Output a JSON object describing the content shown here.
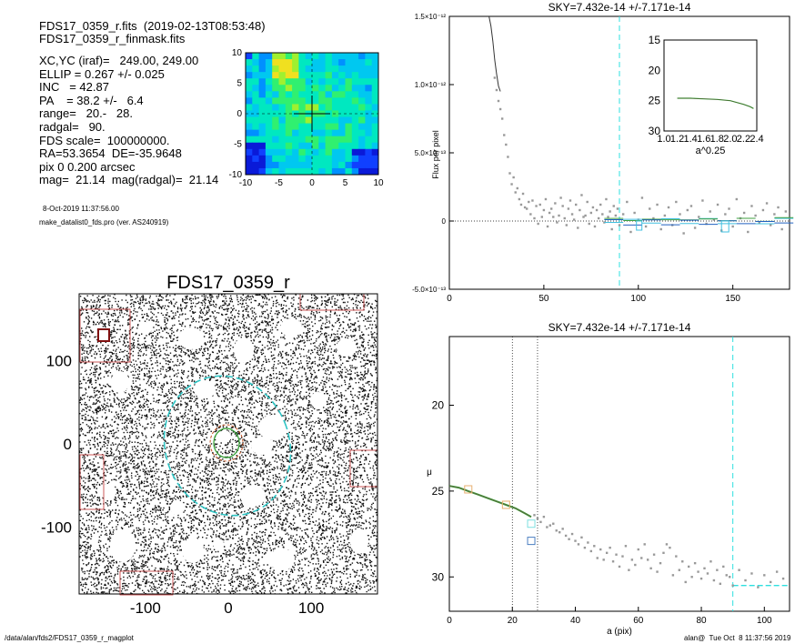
{
  "header": {
    "line1": "FDS17_0359_r.fits  (2019-02-13T08:53:48)",
    "line2": "FDS17_0359_r_finmask.fits",
    "params": [
      "XC,YC (iraf)=   249.00, 249.00",
      "ELLIP = 0.267 +/- 0.025",
      "INC   = 42.87",
      "PA    = 38.2 +/-   6.4",
      "range=   20.-   28.",
      "radgal=   90.",
      "FDS scale=  100000000.",
      "RA=53.3654  DE=-35.9648",
      "pix 0 0.200 arcsec",
      "mag=  21.14  mag(radgal)=  21.14"
    ],
    "date": "8-Oct-2019 11:37:56.00",
    "program": "make_datalist0_fds.pro (ver. AS240919)"
  },
  "footer": {
    "path": "/data/alan/fds2/FDS17_0359_r_magplot",
    "user": "alan@  Tue Oct  8 11:37:56 2019"
  },
  "chart_data": [
    {
      "type": "heatmap",
      "name": "thumbnail",
      "xlim": [
        -10,
        10
      ],
      "ylim": [
        -10,
        10
      ],
      "xticks": [
        "-10",
        "-5",
        "0",
        "5",
        "10"
      ],
      "yticks": [
        "10",
        "5",
        "0",
        "-5",
        "-10"
      ],
      "colors": {
        "low": "#1020e0",
        "mid": "#00e0e0",
        "high": "#ff2020"
      }
    },
    {
      "type": "scatter",
      "name": "galaxy-image",
      "title": "FDS17_0359_r",
      "xlim": [
        -180,
        180
      ],
      "ylim": [
        -180,
        180
      ],
      "xticks": [
        "-100",
        "0",
        "100"
      ],
      "yticks": [
        "100",
        "0",
        "-100"
      ],
      "ellipse": {
        "color": "#2ec4c4"
      }
    },
    {
      "type": "scatter",
      "name": "flux-profile",
      "title": "SKY=7.432e-14 +/-7.171e-14",
      "xlabel": "",
      "ylabel": "Flux per pixel",
      "xlim": [
        0,
        180
      ],
      "ylim": [
        -5e-13,
        1.5e-12
      ],
      "xticks": [
        "0",
        "50",
        "100",
        "150"
      ],
      "yticks": [
        "1.5×10⁻¹²",
        "1.0×10⁻¹²",
        "5.0×10⁻¹³",
        "0",
        "-5.0×10⁻¹³"
      ],
      "vline_cyan": 90,
      "line": {
        "x": [
          21,
          22,
          23,
          24,
          25,
          26,
          27
        ],
        "y": [
          1.5e-12,
          1.43e-12,
          1.32e-12,
          1.18e-12,
          1.08e-12,
          9.9e-13,
          9.5e-13
        ]
      },
      "points_x": [
        24,
        25,
        26,
        27,
        28,
        29,
        30,
        31,
        32,
        33,
        34,
        35,
        36,
        37,
        38,
        39,
        40,
        41,
        42,
        43,
        44,
        45,
        46,
        47,
        48,
        49,
        50,
        51,
        52,
        53,
        54,
        55,
        56,
        57,
        58,
        59,
        60,
        61,
        62,
        63,
        64,
        65,
        66,
        67,
        68,
        69,
        70,
        71,
        72,
        73,
        74,
        75,
        76,
        77,
        78,
        79,
        80,
        81,
        82,
        83,
        84,
        85,
        86,
        87,
        88,
        89,
        90,
        92,
        94,
        96,
        98,
        100,
        102,
        104,
        106,
        108,
        110,
        112,
        114,
        116,
        118,
        120,
        122,
        124,
        126,
        128,
        130,
        132,
        134,
        136,
        138,
        140,
        142,
        144,
        146,
        148,
        150,
        152,
        154,
        156,
        158,
        160,
        162,
        164,
        166,
        168,
        170,
        172,
        174,
        176,
        178
      ],
      "points_y": [
        1.05e-12,
        9.6e-13,
        8.8e-13,
        8.2e-13,
        7.5e-13,
        6.3e-13,
        5.6e-13,
        4.7e-13,
        3.5e-13,
        2.7e-13,
        3.2e-13,
        2.1e-13,
        2.4e-13,
        1.6e-13,
        1.2e-13,
        2e-13,
        1e-13,
        9e-14,
        1.4e-13,
        5e-14,
        1.5e-13,
        2e-14,
        1.1e-13,
        -2e-14,
        1.2e-13,
        3e-14,
        8e-14,
        1.6e-13,
        -4e-14,
        6e-14,
        9e-14,
        3e-14,
        1.3e-13,
        -1e-14,
        4e-14,
        1.7e-13,
        1.1e-13,
        2e-14,
        -3e-14,
        9e-14,
        1.5e-13,
        5e-14,
        1e-14,
        1.2e-13,
        -5e-14,
        8e-14,
        1.9e-13,
        3e-14,
        4e-14,
        1.4e-13,
        -2e-14,
        6e-14,
        1e-13,
        -4e-14,
        8e-14,
        2e-14,
        1.2e-13,
        5e-14,
        -1e-14,
        1.6e-13,
        3e-14,
        7e-14,
        -6e-14,
        1.1e-13,
        4e-14,
        9e-14,
        -3e-14,
        5e-14,
        1.4e-13,
        -8e-14,
        6e-14,
        1e-14,
        1.7e-13,
        -4e-14,
        9e-14,
        2e-14,
        1.2e-13,
        -6e-14,
        4e-14,
        1e-13,
        -3e-14,
        1.4e-13,
        5e-14,
        -9e-14,
        8e-14,
        1.1e-13,
        -5e-14,
        3e-14,
        1.5e-13,
        -2e-14,
        7e-14,
        1e-14,
        1.2e-13,
        -7e-14,
        5e-14,
        9e-14,
        -4e-14,
        1.6e-13,
        2e-14,
        6e-14,
        -8e-14,
        1.1e-13,
        4e-14,
        -1e-14,
        8e-14,
        1.3e-13,
        -3e-14,
        5e-14,
        1e-13,
        -6e-14,
        7e-14
      ],
      "inset": {
        "xlim": [
          1.0,
          2.4
        ],
        "ylim": [
          30,
          15
        ],
        "xlabel": "a^0.25",
        "xticks": [
          "1.0",
          "1.2",
          "1.4",
          "1.6",
          "1.8",
          "2.0",
          "2.2",
          "2.4"
        ],
        "yticks": [
          "15",
          "20",
          "25",
          "30"
        ],
        "curve_x": [
          1.2,
          1.4,
          1.6,
          1.8,
          2.0,
          2.1,
          2.2,
          2.3,
          2.35
        ],
        "curve_y": [
          24.6,
          24.6,
          24.7,
          24.8,
          25.0,
          25.3,
          25.6,
          26.0,
          26.3
        ]
      }
    },
    {
      "type": "scatter",
      "name": "surface-brightness",
      "title": "SKY=7.432e-14 +/-7.171e-14",
      "xlabel": "a (pix)",
      "ylabel": "μ",
      "xlim": [
        0,
        108
      ],
      "ylim": [
        32,
        16
      ],
      "xticks": [
        "0",
        "20",
        "40",
        "60",
        "80",
        "100"
      ],
      "yticks": [
        "20",
        "25",
        "30"
      ],
      "vlines_dotted": [
        20,
        28
      ],
      "vline_cyan": 90,
      "sky_line_y": 30.5,
      "curve_x": [
        0,
        3,
        6,
        9,
        12,
        15,
        18,
        21,
        24,
        26
      ],
      "curve_y": [
        24.7,
        24.8,
        25.0,
        25.2,
        25.4,
        25.6,
        25.8,
        26.0,
        26.3,
        26.5
      ],
      "points_x": [
        27,
        28,
        29,
        30,
        31,
        32,
        33,
        34,
        35,
        36,
        37,
        38,
        39,
        40,
        41,
        42,
        43,
        44,
        45,
        46,
        47,
        48,
        49,
        50,
        51,
        52,
        53,
        54,
        55,
        56,
        57,
        58,
        59,
        60,
        61,
        62,
        63,
        64,
        65,
        66,
        67,
        68,
        69,
        70,
        71,
        72,
        73,
        74,
        75,
        76,
        77,
        78,
        79,
        80,
        81,
        82,
        83,
        84,
        85,
        86,
        87,
        88,
        89,
        90,
        92,
        94,
        96,
        98,
        100,
        102,
        104,
        106
      ],
      "points_y": [
        26.4,
        26.6,
        26.8,
        26.5,
        27.1,
        27.0,
        26.9,
        27.3,
        27.4,
        27.2,
        27.6,
        27.8,
        27.5,
        27.9,
        28.1,
        27.7,
        28.3,
        28.0,
        28.5,
        28.2,
        28.9,
        28.4,
        29.0,
        28.6,
        28.3,
        29.1,
        28.7,
        29.4,
        28.8,
        28.2,
        29.6,
        29.0,
        29.3,
        28.4,
        28.9,
        28.1,
        29.0,
        29.5,
        28.7,
        29.7,
        29.2,
        28.6,
        28.1,
        28.3,
        29.9,
        28.8,
        29.6,
        29.1,
        30.3,
        29.4,
        30.0,
        29.2,
        29.7,
        30.1,
        29.5,
        29.8,
        29.1,
        30.2,
        29.6,
        30.4,
        29.4,
        29.9,
        30.0,
        30.5,
        29.6,
        30.2,
        29.8,
        30.6,
        29.9,
        30.3,
        29.7,
        30.1
      ],
      "boxes": [
        {
          "x": 6,
          "y": 24.9,
          "color": "#e8b070"
        },
        {
          "x": 18,
          "y": 25.8,
          "color": "#e8b070"
        },
        {
          "x": 26,
          "y": 26.9,
          "color": "#7ee0e0"
        },
        {
          "x": 26,
          "y": 27.9,
          "color": "#4a7ec0"
        }
      ]
    }
  ]
}
